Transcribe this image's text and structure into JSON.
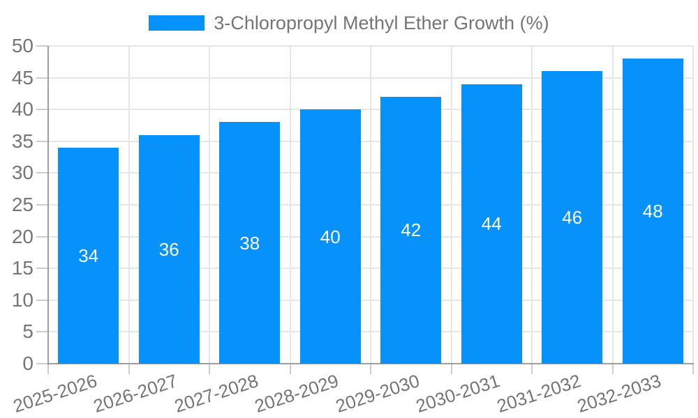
{
  "legend": {
    "swatch_color": "#0691fb",
    "label": "3-Chloropropyl Methyl Ether Growth (%)"
  },
  "chart_data": {
    "type": "bar",
    "title": "3-Chloropropyl Methyl Ether Growth (%)",
    "categories": [
      "2025-2026",
      "2026-2027",
      "2027-2028",
      "2028-2029",
      "2029-2030",
      "2030-2031",
      "2031-2032",
      "2032-2033"
    ],
    "values": [
      34,
      36,
      38,
      40,
      42,
      44,
      46,
      48
    ],
    "value_labels": [
      "34",
      "36",
      "38",
      "40",
      "42",
      "44",
      "46",
      "48"
    ],
    "y_tick_labels": [
      "0",
      "5",
      "10",
      "15",
      "20",
      "25",
      "30",
      "35",
      "40",
      "45",
      "50"
    ],
    "ylim": [
      0,
      50
    ],
    "ytick_step": 5,
    "xlabel": "",
    "ylabel": "",
    "grid": true,
    "legend_position": "top",
    "colors": {
      "bar": "#0691fb",
      "value_label": "#ffffff",
      "axis_line": "#9e9e9e",
      "gridline": "#e6e6e6",
      "tick": "#cccccc",
      "text": "#757575"
    }
  }
}
